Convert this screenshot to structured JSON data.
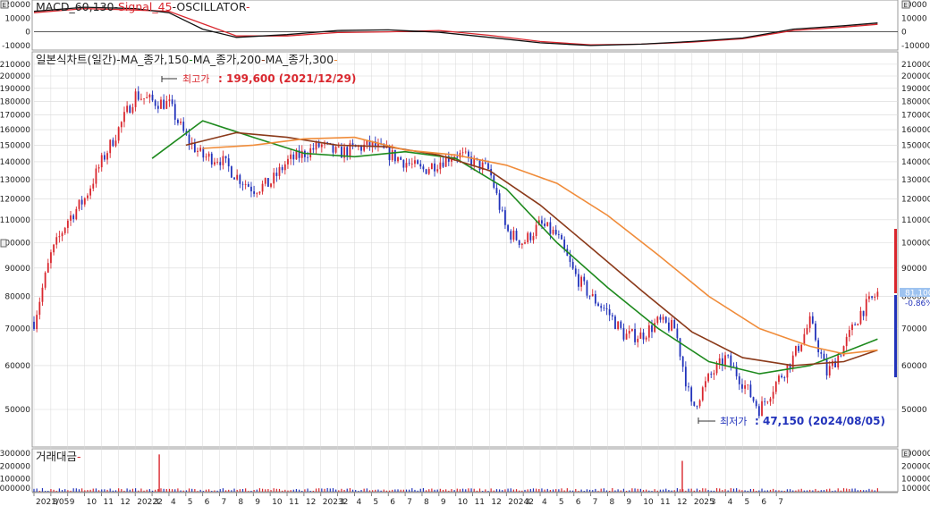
{
  "colors": {
    "up": "#d9272e",
    "down": "#2233bb",
    "ma150": "#1e8a1e",
    "ma200": "#8b3a1a",
    "ma300": "#f08c3a",
    "macd": "#111111",
    "signal": "#d9272e",
    "grid": "#d8d8d8",
    "current_bg": "#9ec3f0"
  },
  "panels": {
    "macd": {
      "label_macd": "MACD_60,130",
      "label_signal": "Signal_45",
      "label_osc": "OSCILLATOR",
      "sep1": "-",
      "sep2": "-",
      "sep3": "-",
      "left_ticks": [
        "20000",
        "10000",
        "0",
        "-10000"
      ],
      "right_ticks": [
        "20000",
        "10000",
        "0",
        "-10000"
      ]
    },
    "price": {
      "label": "일본식차트(일간)",
      "ma1": "MA_종가,150",
      "ma2": "MA_종가,200",
      "ma3": "MA_종가,300",
      "sep1": "-",
      "sep2": "-",
      "sep3": "-",
      "sep4": "-",
      "high_label": "최고가",
      "high_value": ": 199,600 (2021/12/29)",
      "low_label": "최저가",
      "low_value": ": 47,150 (2024/08/05)",
      "current_price": "81,100",
      "current_change": "-0.86%"
    },
    "volume": {
      "label": "거래대금",
      "sep": "-",
      "left_ticks": [
        "300000",
        "200000",
        "100000",
        "1000000"
      ],
      "right_ticks": [
        "300000",
        "200000",
        "100000",
        "1000000"
      ]
    }
  },
  "x_ticks": [
    "2021/05",
    "8",
    "9",
    "10",
    "11",
    "12",
    "20222",
    "3",
    "4",
    "5",
    "6",
    "7",
    "8",
    "9",
    "10",
    "11",
    "12",
    "20232",
    "3",
    "4",
    "5",
    "6",
    "7",
    "8",
    "9",
    "10",
    "11",
    "12",
    "20242",
    "3",
    "4",
    "5",
    "6",
    "7",
    "8",
    "9",
    "10",
    "11",
    "12",
    "2025",
    "3",
    "4",
    "5",
    "6",
    "7"
  ],
  "chart_data": {
    "type": "line",
    "title": "",
    "x_range": [
      "2021/05",
      "2025/07"
    ],
    "y_scale": "log",
    "y_ticks": [
      50000,
      60000,
      70000,
      80000,
      90000,
      100000,
      110000,
      120000,
      130000,
      140000,
      150000,
      160000,
      170000,
      180000,
      190000,
      200000,
      210000
    ],
    "price_anchors": {
      "x": [
        "2021/05",
        "2021/06",
        "2021/07",
        "2021/08",
        "2021/09",
        "2021/10",
        "2021/11",
        "2021/12",
        "2022/01",
        "2022/02",
        "2022/03",
        "2022/04",
        "2022/05",
        "2022/06",
        "2022/07",
        "2022/08",
        "2022/09",
        "2022/10",
        "2022/11",
        "2022/12",
        "2023/01",
        "2023/02",
        "2023/03",
        "2023/04",
        "2023/05",
        "2023/06",
        "2023/07",
        "2023/08",
        "2023/09",
        "2023/10",
        "2023/11",
        "2023/12",
        "2024/01",
        "2024/02",
        "2024/03",
        "2024/04",
        "2024/05",
        "2024/06",
        "2024/07",
        "2024/08",
        "2024/09",
        "2024/10",
        "2024/11",
        "2024/12",
        "2025/01",
        "2025/02",
        "2025/03",
        "2025/04",
        "2025/05",
        "2025/06",
        "2025/07"
      ],
      "values": [
        72000,
        95000,
        110000,
        120000,
        140000,
        160000,
        185000,
        180000,
        178000,
        155000,
        143000,
        142000,
        132000,
        125000,
        128000,
        140000,
        145000,
        150000,
        145000,
        148000,
        150000,
        145000,
        140000,
        135000,
        140000,
        145000,
        140000,
        135000,
        105000,
        100000,
        108000,
        103000,
        88000,
        80000,
        75000,
        68000,
        68000,
        72000,
        70000,
        50000,
        57000,
        62000,
        56000,
        50000,
        56000,
        62000,
        72000,
        58000,
        65000,
        75000,
        81100
      ]
    },
    "series": [
      {
        "name": "MA_종가,150",
        "x": [
          "2021/12",
          "2022/03",
          "2022/06",
          "2022/09",
          "2022/12",
          "2023/03",
          "2023/06",
          "2023/09",
          "2023/12",
          "2024/03",
          "2024/06",
          "2024/09",
          "2024/12",
          "2025/03",
          "2025/07"
        ],
        "values": [
          142000,
          166000,
          155000,
          145000,
          143000,
          146000,
          142000,
          125000,
          100000,
          83000,
          70000,
          61000,
          58000,
          60000,
          67000
        ]
      },
      {
        "name": "MA_종가,200",
        "x": [
          "2022/02",
          "2022/05",
          "2022/08",
          "2022/11",
          "2023/02",
          "2023/05",
          "2023/08",
          "2023/11",
          "2024/02",
          "2024/05",
          "2024/08",
          "2024/11",
          "2025/02",
          "2025/05",
          "2025/07"
        ],
        "values": [
          150000,
          158000,
          155000,
          150000,
          149000,
          144000,
          135000,
          117000,
          98000,
          82000,
          69000,
          62000,
          60000,
          61000,
          64000
        ]
      },
      {
        "name": "MA_종가,300",
        "x": [
          "2022/03",
          "2022/06",
          "2022/09",
          "2022/12",
          "2023/03",
          "2023/06",
          "2023/09",
          "2023/12",
          "2024/03",
          "2024/06",
          "2024/09",
          "2024/12",
          "2025/03",
          "2025/05",
          "2025/07"
        ],
        "values": [
          148000,
          150000,
          154000,
          155000,
          147000,
          144000,
          138000,
          128000,
          112000,
          95000,
          80000,
          70000,
          65000,
          63000,
          64000
        ]
      }
    ],
    "annotations": [
      {
        "label": "최고가",
        "value": 199600,
        "date": "2021/12/29"
      },
      {
        "label": "최저가",
        "value": 47150,
        "date": "2024/08/05"
      }
    ],
    "current": {
      "value": 81100,
      "change_pct": -0.86
    },
    "macd": {
      "x": [
        "2021/05",
        "2021/08",
        "2021/11",
        "2022/01",
        "2022/03",
        "2022/05",
        "2022/08",
        "2022/11",
        "2023/02",
        "2023/05",
        "2023/08",
        "2023/11",
        "2024/02",
        "2024/05",
        "2024/08",
        "2024/11",
        "2025/02",
        "2025/05",
        "2025/07"
      ],
      "macd": [
        15000,
        18000,
        17000,
        14000,
        2000,
        -4000,
        -2000,
        1000,
        1500,
        -300,
        -4000,
        -8000,
        -10000,
        -9000,
        -7000,
        -4500,
        2000,
        4500,
        6500
      ],
      "signal": [
        14000,
        17000,
        16000,
        15000,
        6000,
        -3000,
        -3000,
        -500,
        0,
        1000,
        -2500,
        -7000,
        -9500,
        -9000,
        -7500,
        -5000,
        1000,
        3500,
        5500
      ],
      "ylim": [
        -12000,
        22000
      ]
    },
    "volume": {
      "spikes": [
        {
          "x": "2021/12",
          "value": 290000
        },
        {
          "x": "2024/07",
          "value": 240000
        }
      ],
      "ylim": [
        0,
        320000
      ]
    }
  }
}
